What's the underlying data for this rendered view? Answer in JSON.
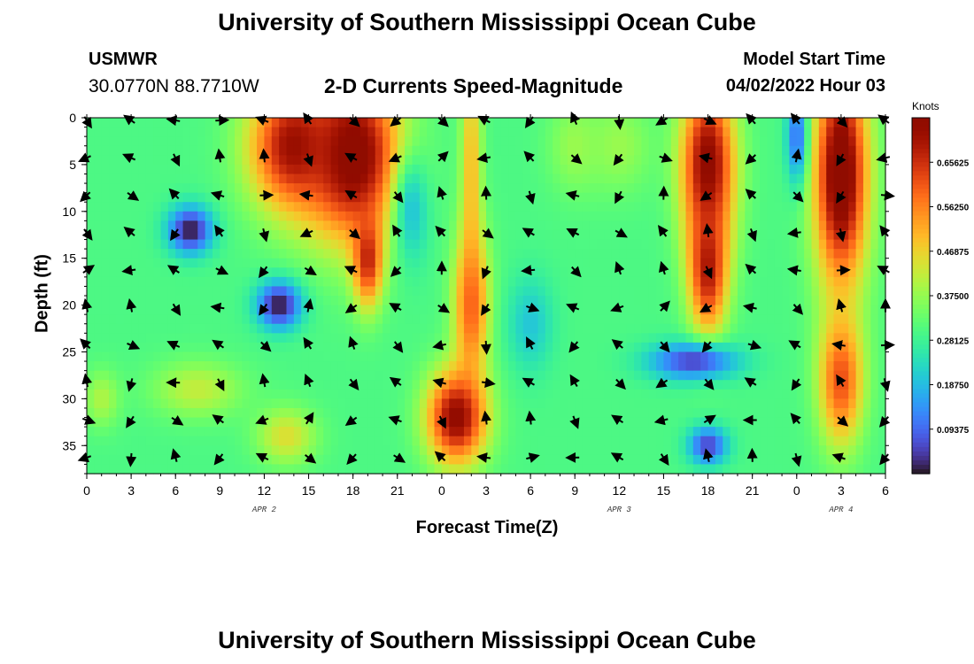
{
  "header": {
    "title": "University of Southern Mississippi Ocean Cube",
    "bottom_title": "University of Southern Mississippi Ocean Cube",
    "station": "USMWR",
    "coords": "30.0770N  88.7710W",
    "subtitle": "2-D Currents Speed-Magnitude",
    "model_label": "Model Start Time",
    "model_time": "04/02/2022 Hour 03"
  },
  "chart_data": {
    "type": "heatmap",
    "title": "2-D Currents Speed-Magnitude",
    "xlabel": "Forecast Time(Z)",
    "ylabel": "Depth (ft)",
    "x_tick_labels": [
      "0",
      "3",
      "6",
      "9",
      "12",
      "15",
      "18",
      "21",
      "0",
      "3",
      "6",
      "9",
      "12",
      "15",
      "18",
      "21",
      "0",
      "3",
      "6"
    ],
    "x_range_hours": [
      0,
      54
    ],
    "date_labels": [
      {
        "label": "APR 2",
        "hour": 12
      },
      {
        "label": "APR 3",
        "hour": 36
      },
      {
        "label": "APR 4",
        "hour": 51
      }
    ],
    "y_tick_labels": [
      "0",
      "5",
      "10",
      "15",
      "20",
      "25",
      "30",
      "35"
    ],
    "y_ticks": [
      0,
      5,
      10,
      15,
      20,
      25,
      30,
      35
    ],
    "ylim": [
      0,
      38
    ],
    "y_inverted": true,
    "colorbar": {
      "units": "Knots",
      "range": [
        0,
        0.75
      ],
      "tick_values": [
        0.09375,
        0.1875,
        0.28125,
        0.375,
        0.46875,
        0.5625,
        0.65625
      ],
      "tick_labels": [
        "0.09375",
        "0.18750",
        "0.28125",
        "0.37500",
        "0.46875",
        "0.56250",
        "0.65625"
      ],
      "colormap": "turbo"
    },
    "hot_spots": [
      {
        "hour": 18,
        "depth": 4,
        "value": 0.78,
        "sx": 3.2,
        "sy": 9
      },
      {
        "hour": 14,
        "depth": 3,
        "value": 0.72,
        "sx": 3.0,
        "sy": 7
      },
      {
        "hour": 19,
        "depth": 15,
        "value": 0.68,
        "sx": 1.0,
        "sy": 5
      },
      {
        "hour": 26,
        "depth": 5,
        "value": 0.5,
        "sx": 0.7,
        "sy": 14
      },
      {
        "hour": 26,
        "depth": 20,
        "value": 0.6,
        "sx": 1.2,
        "sy": 8
      },
      {
        "hour": 25,
        "depth": 32,
        "value": 0.74,
        "sx": 2.0,
        "sy": 5
      },
      {
        "hour": 33,
        "depth": 3,
        "value": 0.38,
        "sx": 1.8,
        "sy": 5
      },
      {
        "hour": 36,
        "depth": 3,
        "value": 0.38,
        "sx": 2.2,
        "sy": 5
      },
      {
        "hour": 42,
        "depth": 5,
        "value": 0.75,
        "sx": 1.8,
        "sy": 9
      },
      {
        "hour": 42,
        "depth": 16,
        "value": 0.7,
        "sx": 1.3,
        "sy": 7
      },
      {
        "hour": 51,
        "depth": 6,
        "value": 0.8,
        "sx": 1.8,
        "sy": 12
      },
      {
        "hour": 51,
        "depth": 28,
        "value": 0.62,
        "sx": 1.5,
        "sy": 7
      },
      {
        "hour": 1,
        "depth": 30,
        "value": 0.4,
        "sx": 1.2,
        "sy": 3
      },
      {
        "hour": 7.5,
        "depth": 29,
        "value": 0.42,
        "sx": 3,
        "sy": 3
      },
      {
        "hour": 13.5,
        "depth": 34,
        "value": 0.45,
        "sx": 2,
        "sy": 3
      }
    ],
    "cold_spots": [
      {
        "hour": 7,
        "depth": 12,
        "value": 0.0,
        "sx": 1.5,
        "sy": 2.5
      },
      {
        "hour": 13,
        "depth": 20,
        "value": 0.0,
        "sx": 1.5,
        "sy": 2.5
      },
      {
        "hour": 41,
        "depth": 26,
        "value": 0.05,
        "sx": 3,
        "sy": 2
      },
      {
        "hour": 42,
        "depth": 35,
        "value": 0.05,
        "sx": 1.3,
        "sy": 2
      },
      {
        "hour": 48,
        "depth": 2,
        "value": 0.1,
        "sx": 0.7,
        "sy": 5
      },
      {
        "hour": 22,
        "depth": 10,
        "value": 0.2,
        "sx": 1.2,
        "sy": 6
      },
      {
        "hour": 30,
        "depth": 22,
        "value": 0.2,
        "sx": 1.5,
        "sy": 5
      }
    ],
    "arrow_rows": [
      0,
      4,
      8,
      12,
      16,
      20,
      24,
      28,
      32,
      36
    ]
  }
}
